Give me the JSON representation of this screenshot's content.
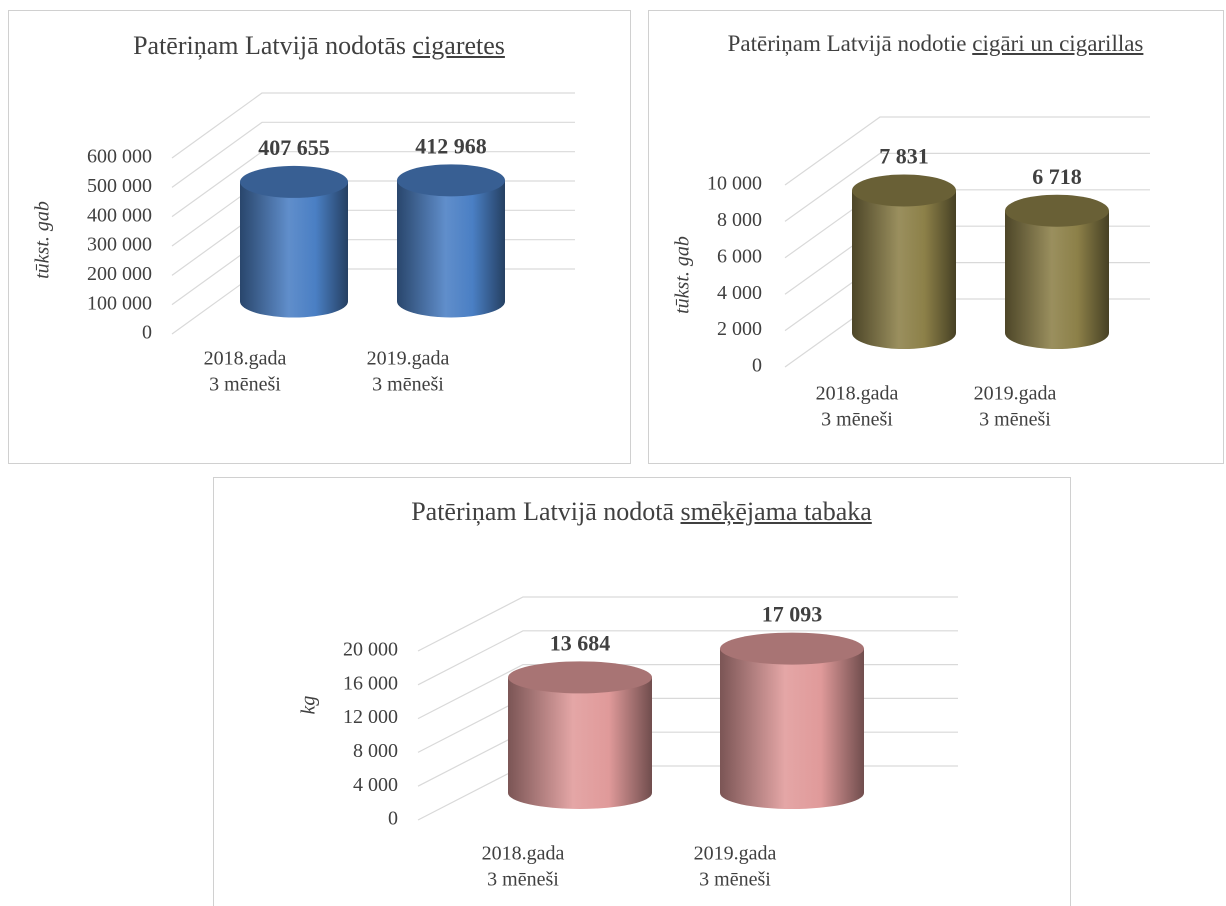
{
  "chart_data": [
    {
      "type": "bar",
      "shape": "cylinder",
      "title": {
        "text": "Patēriņam Latvijā nodotās",
        "underlined": "cigaretes"
      },
      "y_label": "tūkst. gab",
      "categories": [
        [
          "2018.gada",
          "3 mēneši"
        ],
        [
          "2019.gada",
          "3 mēneši"
        ]
      ],
      "values": [
        407655,
        412968
      ],
      "value_labels": [
        "407 655",
        "412 968"
      ],
      "color": "#4a7fc4",
      "ylim": [
        0,
        600000
      ],
      "yticks": [
        0,
        {
          "value": 100000,
          "label": "100 000"
        },
        {
          "value": 200000,
          "label": "200 000"
        },
        {
          "value": 300000,
          "label": "300 000"
        },
        {
          "value": 400000,
          "label": "400 000"
        },
        {
          "value": 500000,
          "label": "500 000"
        },
        {
          "value": 600000,
          "label": "600 000"
        }
      ],
      "grid": true
    },
    {
      "type": "bar",
      "shape": "cylinder",
      "title": {
        "text": "Patēriņam Latvijā nodotie",
        "underlined": "cigāri un cigarillas"
      },
      "y_label": "tūkst. gab",
      "categories": [
        [
          "2018.gada",
          "3 mēneši"
        ],
        [
          "2019.gada",
          "3 mēneši"
        ]
      ],
      "values": [
        7831,
        6718
      ],
      "value_labels": [
        "7 831",
        "6 718"
      ],
      "color": "#8c8048",
      "ylim": [
        0,
        10000
      ],
      "yticks": [
        0,
        {
          "value": 2000,
          "label": "2 000"
        },
        {
          "value": 4000,
          "label": "4 000"
        },
        {
          "value": 6000,
          "label": "6 000"
        },
        {
          "value": 8000,
          "label": "8 000"
        },
        {
          "value": 10000,
          "label": "10 000"
        }
      ],
      "grid": true
    },
    {
      "type": "bar",
      "shape": "cylinder",
      "title": {
        "text": "Patēriņam Latvijā nodotā",
        "underlined": "smēķējama tabaka"
      },
      "y_label": "kg",
      "categories": [
        [
          "2018.gada",
          "3 mēneši"
        ],
        [
          "2019.gada",
          "3 mēneši"
        ]
      ],
      "values": [
        13684,
        17093
      ],
      "value_labels": [
        "13 684",
        "17 093"
      ],
      "color": "#e09a9a",
      "ylim": [
        0,
        20000
      ],
      "yticks": [
        0,
        {
          "value": 4000,
          "label": "4 000"
        },
        {
          "value": 8000,
          "label": "8 000"
        },
        {
          "value": 12000,
          "label": "12 000"
        },
        {
          "value": 16000,
          "label": "16 000"
        },
        {
          "value": 20000,
          "label": "20 000"
        }
      ],
      "grid": true
    }
  ]
}
